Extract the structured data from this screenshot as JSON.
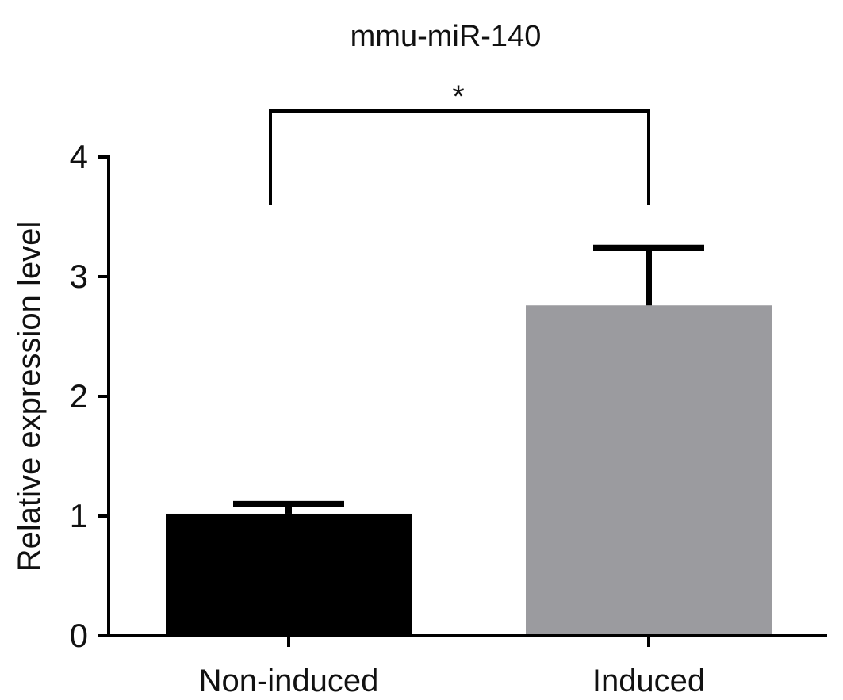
{
  "chart_data": {
    "type": "bar",
    "title": "mmu-miR-140",
    "xlabel": "",
    "ylabel": "Relative expression level",
    "categories": [
      "Non-induced",
      "Induced"
    ],
    "values": [
      1.02,
      2.76
    ],
    "error_upper": [
      1.1,
      3.24
    ],
    "bar_colors": [
      "#000000",
      "#9b9b9f"
    ],
    "ylim": [
      0,
      4
    ],
    "yticks": [
      "0",
      "1",
      "2",
      "3",
      "4"
    ],
    "grid": false,
    "significance": {
      "pair": [
        "Non-induced",
        "Induced"
      ],
      "label": "*"
    }
  }
}
